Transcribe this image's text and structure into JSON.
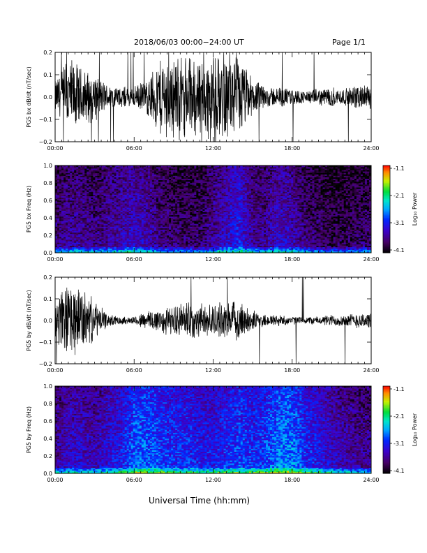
{
  "header": {
    "title": "2018/06/03   00:00−24:00  UT",
    "page": "Page 1/1"
  },
  "footer": {
    "xlabel": "Universal Time (hh:mm)"
  },
  "colorbar": {
    "label": "Log₁₀ Power",
    "ticks": [
      "-1.1",
      "-2.1",
      "-3.1",
      "-4.1"
    ]
  },
  "chart_data": [
    {
      "type": "line",
      "panel": "bx-waveform",
      "ylabel": "PG5 bx dB/dt (nT/sec)",
      "xlabel": "",
      "xlim": [
        "00:00",
        "24:00"
      ],
      "xticks": [
        "00:00",
        "06:00",
        "12:00",
        "18:00",
        "24:00"
      ],
      "ylim": [
        -0.2,
        0.2
      ],
      "yticks": [
        "0.2",
        "0.1",
        "0.0",
        "−0.1",
        "−0.2"
      ],
      "x_hours": [
        0,
        1,
        2,
        3,
        4,
        5,
        6,
        7,
        8,
        9,
        10,
        11,
        12,
        13,
        14,
        15,
        16,
        17,
        18,
        19,
        20,
        21,
        22,
        23,
        24
      ],
      "amplitude": [
        0.08,
        0.2,
        0.14,
        0.12,
        0.06,
        0.05,
        0.05,
        0.09,
        0.2,
        0.2,
        0.2,
        0.2,
        0.2,
        0.2,
        0.2,
        0.09,
        0.05,
        0.05,
        0.04,
        0.03,
        0.04,
        0.05,
        0.04,
        0.06,
        0.06
      ]
    },
    {
      "type": "heatmap",
      "panel": "bx-spectrogram",
      "ylabel": "PG5 bx Freq (Hz)",
      "xlabel": "",
      "xlim": [
        "00:00",
        "24:00"
      ],
      "xticks": [
        "00:00",
        "06:00",
        "12:00",
        "18:00",
        "24:00"
      ],
      "ylim": [
        0.0,
        1.0
      ],
      "yticks": [
        "1.0",
        "0.8",
        "0.6",
        "0.4",
        "0.2",
        "0.0"
      ],
      "zlim": [
        -4.1,
        -1.1
      ],
      "zlabel": "Log₁₀ Power",
      "x_hours": [
        0,
        1,
        2,
        3,
        4,
        5,
        6,
        7,
        8,
        9,
        10,
        11,
        12,
        13,
        14,
        15,
        16,
        17,
        18,
        19,
        20,
        21,
        22,
        23,
        24
      ],
      "background_log_power": [
        -3.6,
        -3.5,
        -3.5,
        -3.6,
        -3.5,
        -3.4,
        -3.3,
        -3.4,
        -3.6,
        -3.7,
        -3.7,
        -3.7,
        -3.5,
        -3.3,
        -3.1,
        -3.5,
        -3.5,
        -3.3,
        -3.4,
        -3.6,
        -3.7,
        -3.8,
        -3.8,
        -3.7,
        -3.7
      ]
    },
    {
      "type": "line",
      "panel": "by-waveform",
      "ylabel": "PG5 by dB/dt (nT/sec)",
      "xlabel": "",
      "xlim": [
        "00:00",
        "24:00"
      ],
      "xticks": [
        "00:00",
        "06:00",
        "12:00",
        "18:00",
        "24:00"
      ],
      "ylim": [
        -0.2,
        0.2
      ],
      "yticks": [
        "0.2",
        "0.1",
        "0.0",
        "−0.1",
        "−0.2"
      ],
      "x_hours": [
        0,
        1,
        2,
        3,
        4,
        5,
        6,
        7,
        8,
        9,
        10,
        11,
        12,
        13,
        14,
        15,
        16,
        17,
        18,
        19,
        20,
        21,
        22,
        23,
        24
      ],
      "amplitude": [
        0.1,
        0.2,
        0.16,
        0.1,
        0.03,
        0.02,
        0.02,
        0.05,
        0.07,
        0.07,
        0.1,
        0.08,
        0.08,
        0.09,
        0.1,
        0.05,
        0.03,
        0.03,
        0.02,
        0.02,
        0.02,
        0.03,
        0.03,
        0.04,
        0.04
      ]
    },
    {
      "type": "heatmap",
      "panel": "by-spectrogram",
      "ylabel": "PG5 by Freq (Hz)",
      "xlabel": "Universal Time (hh:mm)",
      "xlim": [
        "00:00",
        "24:00"
      ],
      "xticks": [
        "00:00",
        "06:00",
        "12:00",
        "18:00",
        "24:00"
      ],
      "ylim": [
        0.0,
        1.0
      ],
      "yticks": [
        "1.0",
        "0.8",
        "0.6",
        "0.4",
        "0.2",
        "0.0"
      ],
      "zlim": [
        -4.1,
        -1.1
      ],
      "zlabel": "Log₁₀ Power",
      "x_hours": [
        0,
        1,
        2,
        3,
        4,
        5,
        6,
        7,
        8,
        9,
        10,
        11,
        12,
        13,
        14,
        15,
        16,
        17,
        18,
        19,
        20,
        21,
        22,
        23,
        24
      ],
      "background_log_power": [
        -3.5,
        -3.3,
        -3.3,
        -3.4,
        -3.2,
        -3.1,
        -2.8,
        -2.8,
        -2.9,
        -3.0,
        -3.0,
        -3.1,
        -3.1,
        -3.0,
        -2.9,
        -3.0,
        -2.9,
        -2.7,
        -2.7,
        -3.0,
        -3.1,
        -3.3,
        -3.4,
        -3.5,
        -3.5
      ]
    }
  ]
}
